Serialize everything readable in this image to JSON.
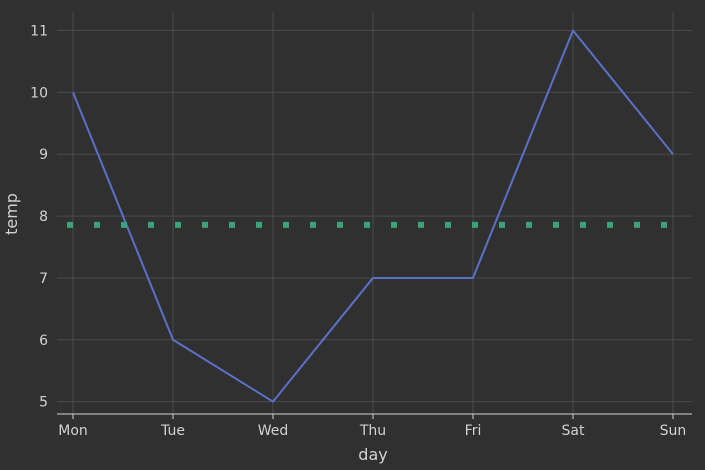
{
  "chart_data": {
    "type": "line",
    "title": "",
    "xlabel": "day",
    "ylabel": "temp",
    "categories": [
      "Mon",
      "Tue",
      "Wed",
      "Thu",
      "Fri",
      "Sat",
      "Sun"
    ],
    "ylim": [
      4.8,
      11.3
    ],
    "yticks": [
      5,
      6,
      7,
      8,
      9,
      10,
      11
    ],
    "grid": true,
    "legend": "none",
    "series": [
      {
        "values": [
          10,
          6,
          5,
          7,
          7,
          11,
          9
        ],
        "color": "#5b70c8",
        "style": "solid"
      },
      {
        "values": [
          7.857,
          7.857,
          7.857,
          7.857,
          7.857,
          7.857,
          7.857
        ],
        "color": "#3aa37a",
        "style": "dotted"
      }
    ]
  },
  "colors": {
    "background": "#303030",
    "grid": "#4a4a4a",
    "axis": "#d2d2d2"
  }
}
